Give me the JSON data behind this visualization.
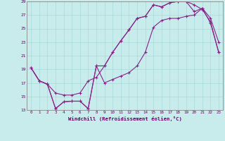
{
  "xlabel": "Windchill (Refroidissement éolien,°C)",
  "bg_color": "#c8ecec",
  "grid_color": "#a8d8d8",
  "line_color": "#882288",
  "xlim": [
    -0.5,
    23.5
  ],
  "ylim": [
    13,
    29
  ],
  "yticks": [
    13,
    15,
    17,
    19,
    21,
    23,
    25,
    27,
    29
  ],
  "xticks": [
    0,
    1,
    2,
    3,
    4,
    5,
    6,
    7,
    8,
    9,
    10,
    11,
    12,
    13,
    14,
    15,
    16,
    17,
    18,
    19,
    20,
    21,
    22,
    23
  ],
  "line1_x": [
    0,
    1,
    2,
    3,
    4,
    5,
    6,
    7,
    8,
    9,
    10,
    11,
    12,
    13,
    14,
    15,
    16,
    17,
    18,
    19,
    20,
    21,
    22,
    23
  ],
  "line1_y": [
    19.2,
    17.3,
    16.8,
    13.2,
    14.2,
    14.3,
    14.3,
    13.2,
    19.5,
    17.0,
    17.5,
    18.0,
    18.5,
    19.5,
    21.5,
    25.2,
    26.2,
    26.5,
    26.5,
    26.8,
    27.0,
    28.0,
    25.8,
    21.5
  ],
  "line2_x": [
    0,
    1,
    2,
    3,
    4,
    5,
    6,
    7,
    8,
    9,
    10,
    11,
    12,
    13,
    14,
    15,
    16,
    17,
    18,
    19,
    20,
    21,
    22,
    23
  ],
  "line2_y": [
    19.2,
    17.3,
    16.8,
    15.5,
    15.2,
    15.2,
    15.5,
    17.3,
    17.8,
    19.5,
    21.5,
    23.2,
    24.8,
    26.5,
    26.8,
    28.5,
    28.2,
    28.8,
    29.0,
    29.0,
    28.5,
    27.8,
    26.0,
    21.5
  ],
  "line3_x": [
    0,
    1,
    2,
    3,
    4,
    5,
    6,
    7,
    8,
    9,
    10,
    11,
    12,
    13,
    14,
    15,
    16,
    17,
    18,
    19,
    20,
    21,
    22,
    23
  ],
  "line3_y": [
    19.2,
    17.3,
    16.8,
    13.2,
    14.2,
    14.3,
    14.3,
    13.2,
    19.5,
    19.5,
    21.5,
    23.2,
    24.8,
    26.5,
    26.8,
    28.5,
    28.2,
    28.8,
    29.0,
    29.0,
    27.5,
    28.0,
    26.5,
    23.0
  ]
}
